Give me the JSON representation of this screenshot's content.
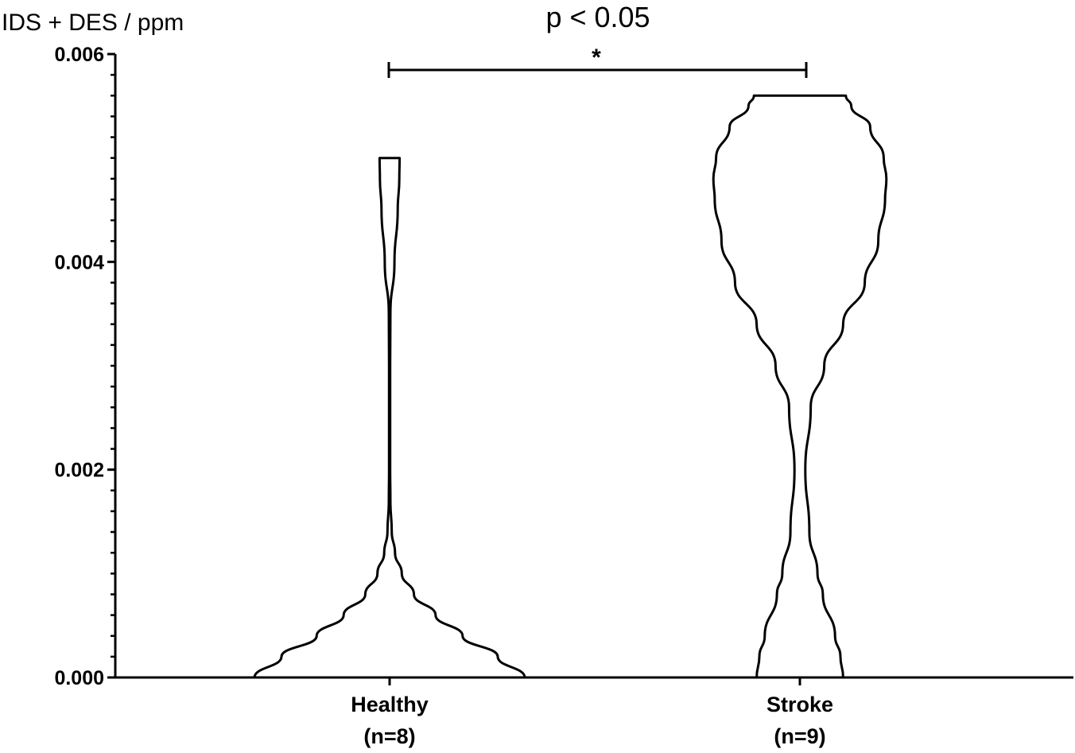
{
  "chart_data": {
    "type": "violin",
    "ylabel": "IDS + DES / ppm",
    "annotation": "p < 0.05",
    "significance": {
      "marker": "*",
      "between": [
        "Healthy",
        "Stroke"
      ]
    },
    "ylim": [
      0.0,
      0.006
    ],
    "yticks": [
      "0.000",
      "0.002",
      "0.004",
      "0.006"
    ],
    "minor_ticks_per_major": 10,
    "categories": [
      {
        "name": "Healthy",
        "n_label": "(n=8)"
      },
      {
        "name": "Stroke",
        "n_label": "(n=9)"
      }
    ],
    "violins": [
      {
        "category": "Healthy",
        "min": 0.0,
        "max": 0.005,
        "density_profile": [
          [
            0.0,
            0.5
          ],
          [
            0.0002,
            0.4
          ],
          [
            0.0004,
            0.27
          ],
          [
            0.0006,
            0.17
          ],
          [
            0.0008,
            0.09
          ],
          [
            0.001,
            0.045
          ],
          [
            0.0012,
            0.02
          ],
          [
            0.0014,
            0.008
          ],
          [
            0.0017,
            0.003
          ],
          [
            0.002,
            0.002
          ],
          [
            0.003,
            0.002
          ],
          [
            0.0035,
            0.003
          ],
          [
            0.004,
            0.018
          ],
          [
            0.0045,
            0.03
          ],
          [
            0.0048,
            0.036
          ],
          [
            0.005,
            0.037
          ]
        ]
      },
      {
        "category": "Stroke",
        "min": 0.0,
        "max": 0.0056,
        "density_profile": [
          [
            0.0,
            0.16
          ],
          [
            0.0002,
            0.15
          ],
          [
            0.0004,
            0.13
          ],
          [
            0.0008,
            0.085
          ],
          [
            0.001,
            0.065
          ],
          [
            0.0014,
            0.035
          ],
          [
            0.002,
            0.02
          ],
          [
            0.0026,
            0.04
          ],
          [
            0.003,
            0.09
          ],
          [
            0.0034,
            0.16
          ],
          [
            0.0038,
            0.24
          ],
          [
            0.0042,
            0.29
          ],
          [
            0.0046,
            0.315
          ],
          [
            0.0048,
            0.32
          ],
          [
            0.005,
            0.31
          ],
          [
            0.0053,
            0.26
          ],
          [
            0.0055,
            0.19
          ],
          [
            0.0056,
            0.17
          ]
        ]
      }
    ]
  }
}
